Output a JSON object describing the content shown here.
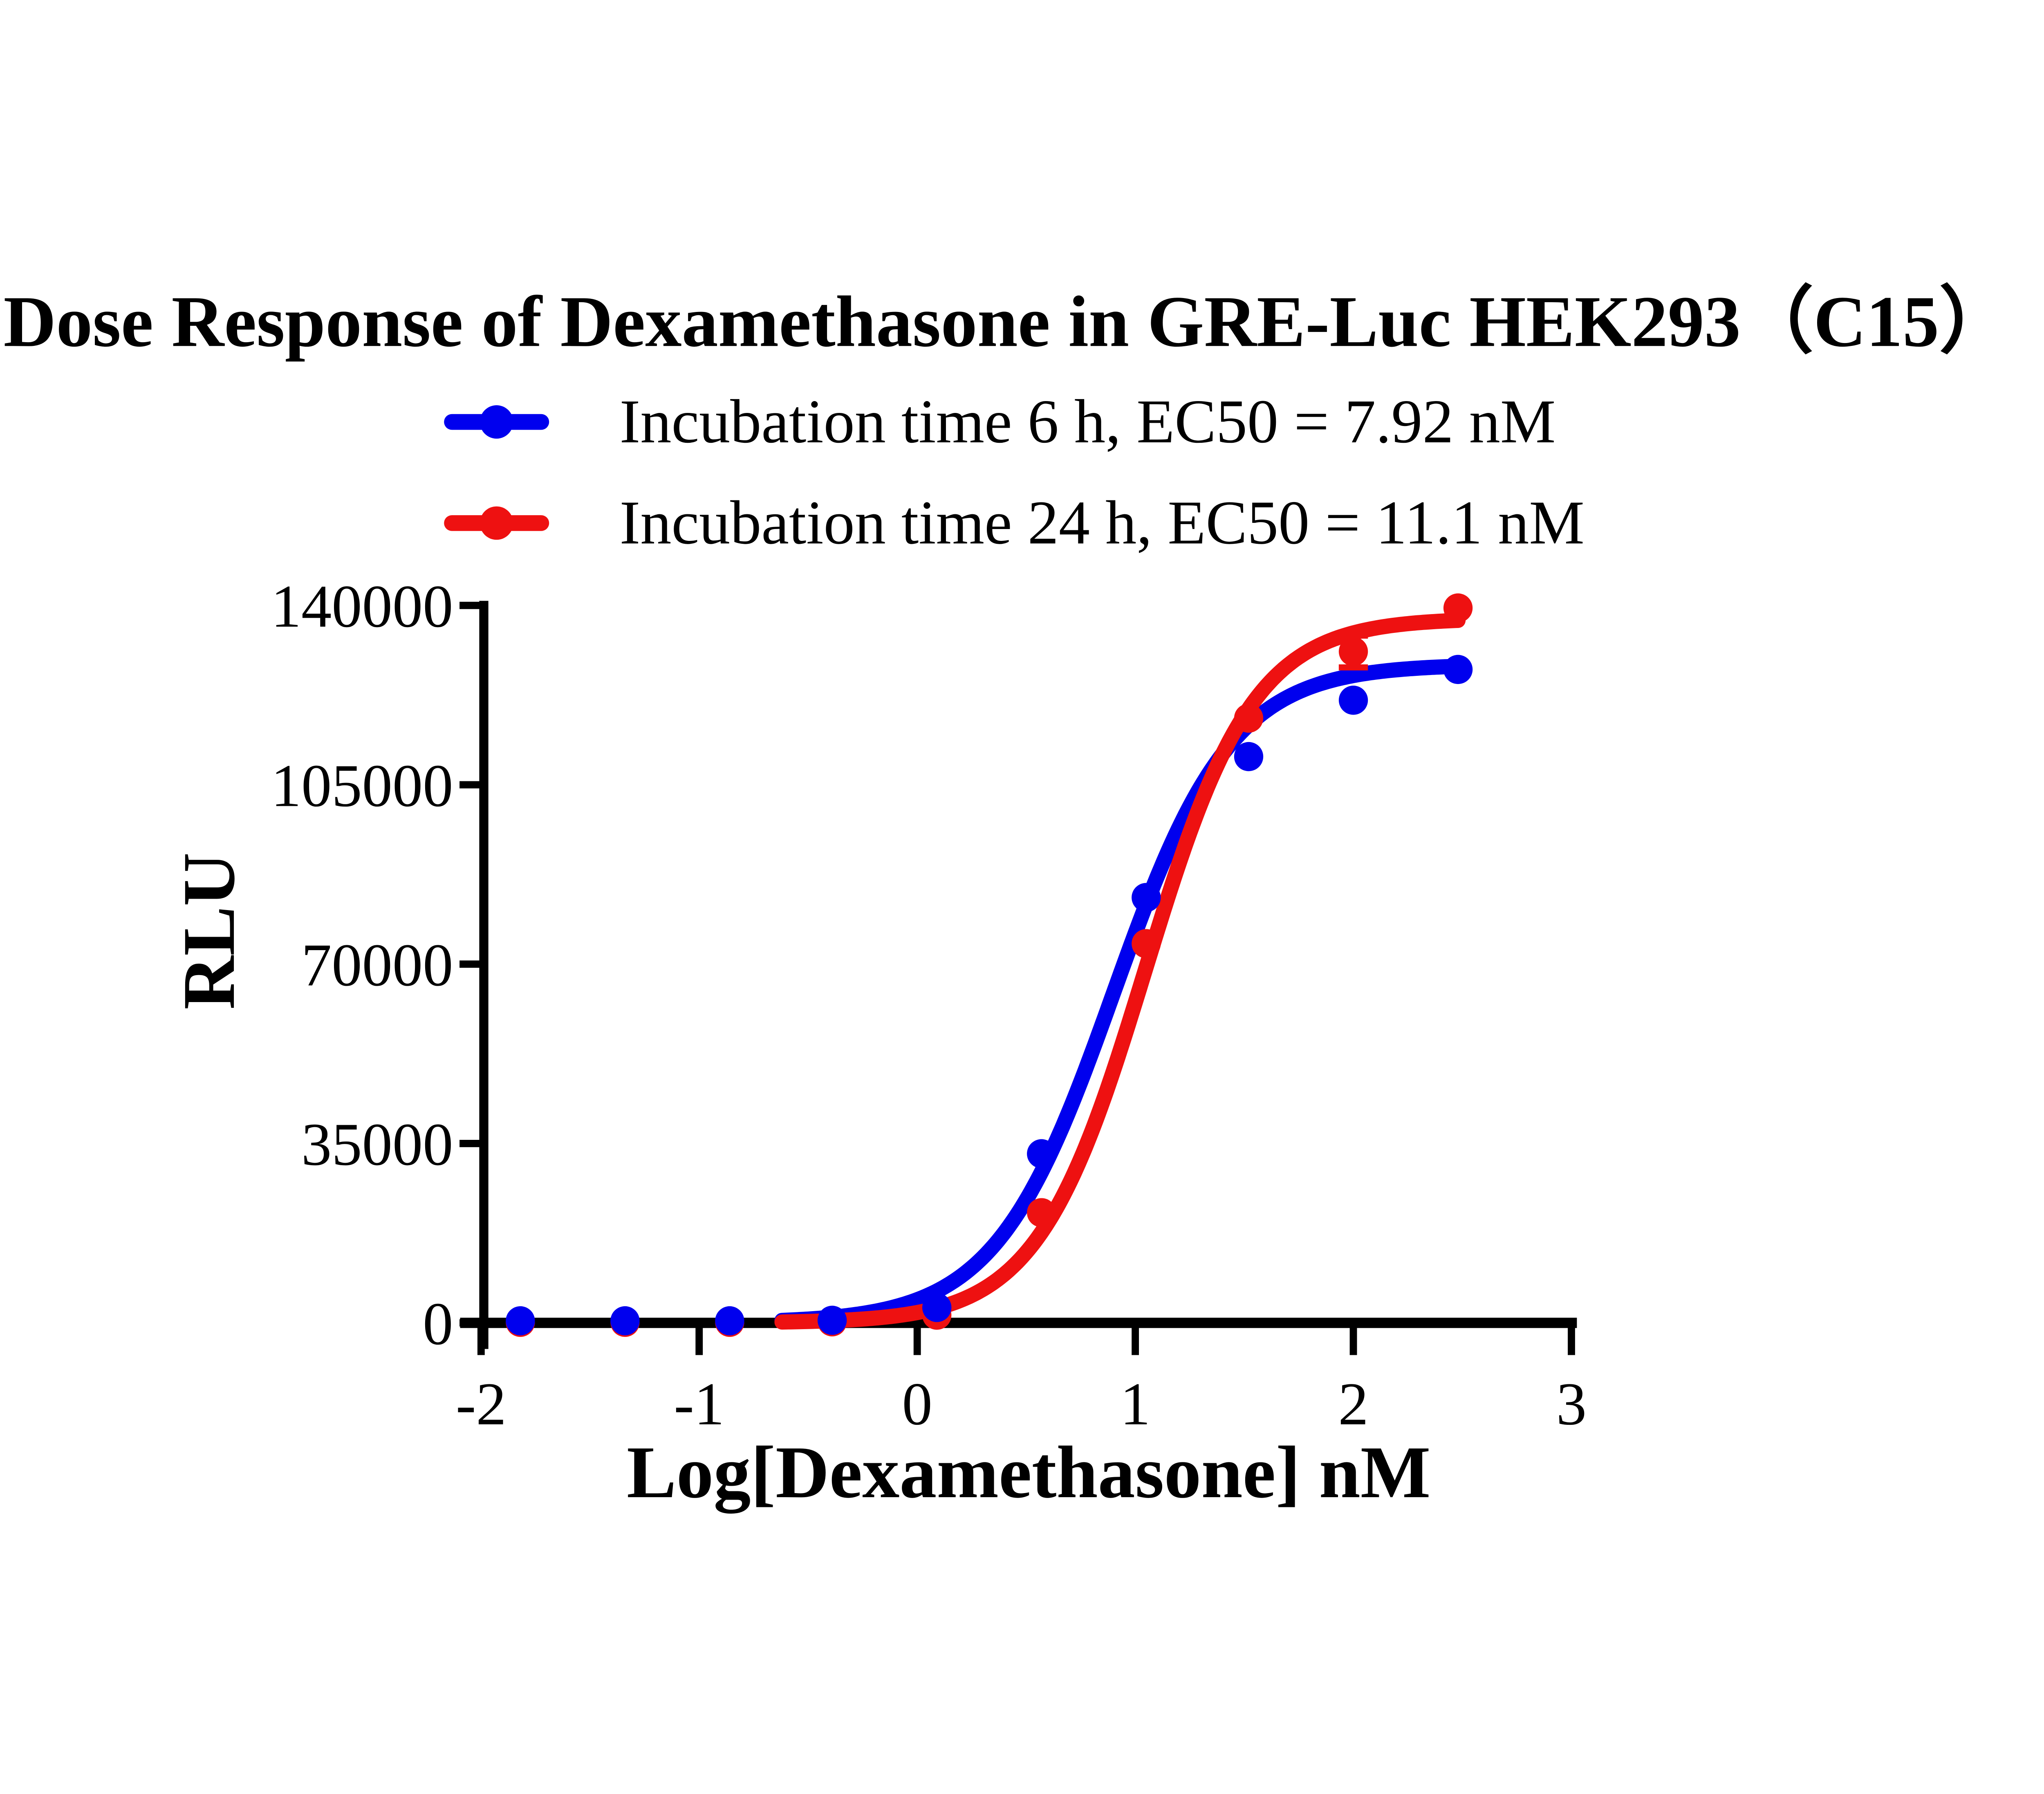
{
  "title": "Dose Response of Dexamethasone in GRE-Luc HEK293（C15）",
  "chart_data": {
    "type": "line",
    "title": "Dose Response of Dexamethasone in GRE-Luc HEK293（C15）",
    "xlabel": "Log[Dexamethasone] nM",
    "ylabel": "RLU",
    "x_ticks": [
      -2,
      -1,
      0,
      1,
      2,
      3
    ],
    "y_ticks": [
      0,
      35000,
      70000,
      105000,
      140000
    ],
    "xlim": [
      -2.1,
      3.05
    ],
    "ylim": [
      0,
      140000
    ],
    "grid": false,
    "legend_position": "above-plot-left",
    "background": "#ffffff",
    "axis_color": "#000000",
    "series": [
      {
        "name": "Incubation time 6 h",
        "legend_label": "Incubation time 6 h,  EC50 = 7.92 nM",
        "ec50_label": "EC50 = 7.92 nM",
        "ec50_nM": 7.92,
        "color": "#0000ee",
        "marker": "circle",
        "x": [
          -1.82,
          -1.34,
          -0.86,
          -0.39,
          0.09,
          0.57,
          1.05,
          1.52,
          2.0,
          2.48
        ],
        "y": [
          400,
          400,
          400,
          500,
          3000,
          33000,
          83000,
          110500,
          121500,
          127500
        ],
        "yerr": [
          0,
          0,
          0,
          0,
          0,
          0,
          0,
          0,
          0,
          0
        ],
        "fit": {
          "model": "4PL",
          "bottom": 0,
          "top": 128500,
          "logEC50": 0.899,
          "hill": 1.6,
          "x_start": -0.62,
          "x_end": 2.48
        }
      },
      {
        "name": "Incubation time 24 h",
        "legend_label": "Incubation time 24 h,  EC50 = 11.1 nM",
        "ec50_label": "EC50 = 11.1 nM",
        "ec50_nM": 11.1,
        "color": "#ee1111",
        "marker": "circle",
        "x": [
          -1.82,
          -1.34,
          -0.86,
          -0.39,
          0.09,
          0.57,
          1.05,
          1.52,
          2.0,
          2.48
        ],
        "y": [
          100,
          100,
          100,
          200,
          1500,
          21500,
          74000,
          118000,
          131000,
          139500
        ],
        "yerr": [
          0,
          0,
          0,
          0,
          0,
          0,
          0,
          0,
          3100,
          0
        ],
        "fit": {
          "model": "4PL",
          "bottom": 0,
          "top": 137500,
          "logEC50": 1.045,
          "hill": 1.75,
          "x_start": -0.62,
          "x_end": 2.48
        }
      }
    ]
  }
}
